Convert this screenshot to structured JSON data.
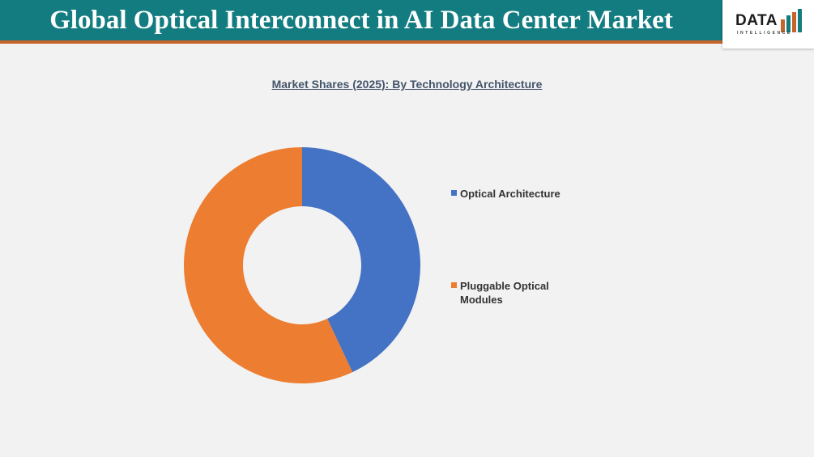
{
  "header": {
    "title": "Global Optical Interconnect in AI Data Center Market",
    "title_color": "#ffffff",
    "bar_color": "#137c80",
    "stripe_color": "#c5642b"
  },
  "logo": {
    "word": "DATA",
    "sub": "INTELLIGENCE",
    "icon": "bar-chart-icon",
    "bar_colors": [
      "#c5642b",
      "#137c80"
    ]
  },
  "chart_data": {
    "type": "pie",
    "title": "Market Shares (2025): By Technology Architecture",
    "donut": true,
    "categories": [
      "Optical Architecture",
      "Pluggable Optical Modules"
    ],
    "values": [
      43,
      57
    ],
    "colors": [
      "#4472c4",
      "#ed7d31"
    ],
    "legend": "right"
  }
}
